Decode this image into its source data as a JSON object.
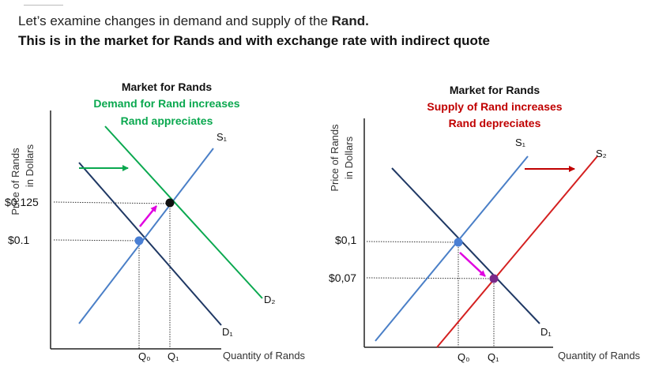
{
  "intro": {
    "line1_plain": "Let’s examine changes in demand and supply of the ",
    "line1_bold": "Rand.",
    "line2": "This is in the market for Rands and with exchange rate with indirect quote"
  },
  "left_chart": {
    "title": "Market for Rands",
    "subtitle1": "Demand for Rand increases",
    "subtitle2": "Rand appreciates",
    "y_axis_label_line1": "Price of Rands",
    "y_axis_label_line2": "in Dollars",
    "x_axis_label": "Quantity of Rands",
    "price_high": "$0,125",
    "price_low": "$0.1",
    "q0": "Q₀",
    "q1": "Q₁",
    "s1": "S₁",
    "d1": "D₁",
    "d2": "D₂",
    "subtitle_color": "#0aa84f"
  },
  "right_chart": {
    "title": "Market for Rands",
    "subtitle1": "Supply of Rand increases",
    "subtitle2": "Rand depreciates",
    "y_axis_label_line1": "Price of Rands",
    "y_axis_label_line2": "in Dollars",
    "x_axis_label": "Quantity  of Rands",
    "price_high": "$0,1",
    "price_low": "$0,07",
    "q0": "Q₀",
    "q1": "Q₁",
    "s1": "S₁",
    "s2": "S₂",
    "d1": "D₁",
    "subtitle_color": "#c00000"
  },
  "colors": {
    "supply_line": "#4a7fc7",
    "demand_line": "#1f3864",
    "new_demand": "#0aa84f",
    "new_supply": "#d42020",
    "shift_arrow_green": "#0aa84f",
    "shift_arrow_red": "#c00000",
    "move_arrow": "#e000e0",
    "point_blue": "#4a7fd4",
    "point_black": "#111111",
    "point_purple": "#7a2a8a"
  }
}
